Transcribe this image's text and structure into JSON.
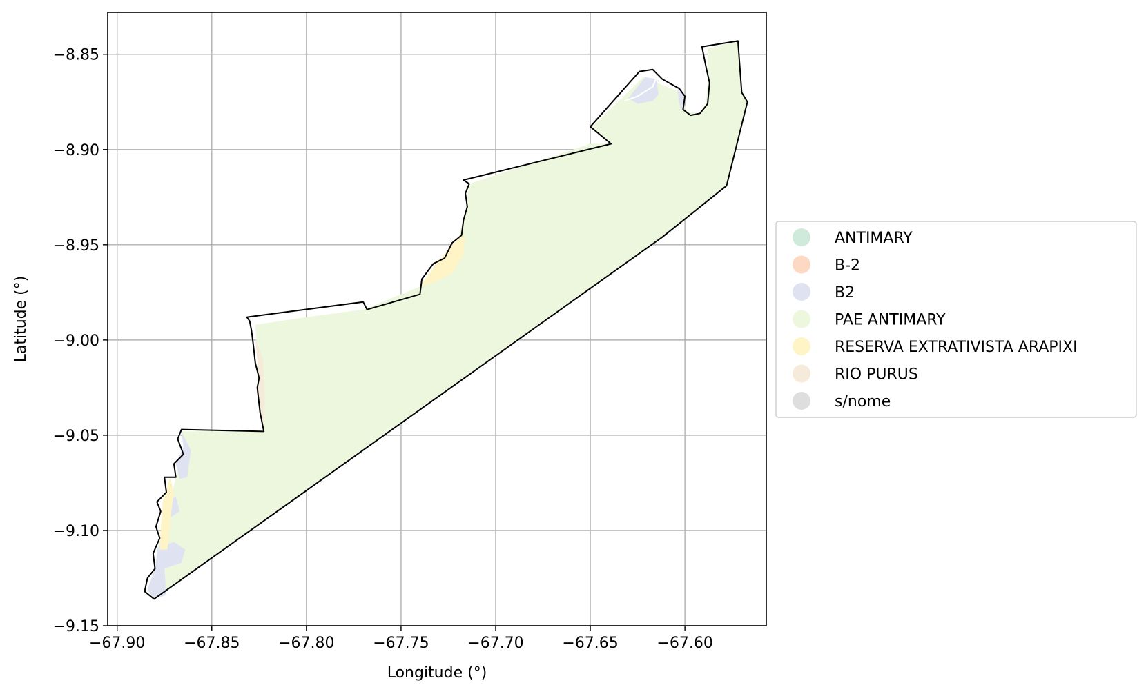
{
  "chart_data": {
    "type": "map",
    "xlabel": "Longitude (°)",
    "ylabel": "Latitude (°)",
    "xlim": [
      -67.905,
      -67.557
    ],
    "ylim": [
      -9.15,
      -8.828
    ],
    "grid": true,
    "x_ticks": [
      {
        "value": -67.9,
        "label": "−67.90"
      },
      {
        "value": -67.85,
        "label": "−67.85"
      },
      {
        "value": -67.8,
        "label": "−67.80"
      },
      {
        "value": -67.75,
        "label": "−67.75"
      },
      {
        "value": -67.7,
        "label": "−67.70"
      },
      {
        "value": -67.65,
        "label": "−67.65"
      },
      {
        "value": -67.6,
        "label": "−67.60"
      }
    ],
    "y_ticks": [
      {
        "value": -8.85,
        "label": "−8.85"
      },
      {
        "value": -8.9,
        "label": "−8.90"
      },
      {
        "value": -8.95,
        "label": "−8.95"
      },
      {
        "value": -9.0,
        "label": "−9.00"
      },
      {
        "value": -9.05,
        "label": "−9.05"
      },
      {
        "value": -9.1,
        "label": "−9.10"
      },
      {
        "value": -9.15,
        "label": "−9.15"
      }
    ],
    "legend": {
      "placement": "right",
      "entries": [
        {
          "label": "ANTIMARY",
          "color": "#cfeadb"
        },
        {
          "label": "B-2",
          "color": "#fdd8c2"
        },
        {
          "label": "B2",
          "color": "#dfe3f1"
        },
        {
          "label": "PAE ANTIMARY",
          "color": "#ecf7dd"
        },
        {
          "label": "RESERVA EXTRATIVISTA ARAPIXI",
          "color": "#fef4c6"
        },
        {
          "label": "RIO PURUS",
          "color": "#f6eadb"
        },
        {
          "label": "s/nome",
          "color": "#dedede"
        }
      ]
    },
    "regions": [
      {
        "category": "PAE ANTIMARY",
        "color": "#ecf7dd",
        "coords": [
          [
            -67.8805,
            -9.136
          ],
          [
            -67.884,
            -9.131
          ],
          [
            -67.8805,
            -9.121
          ],
          [
            -67.8785,
            -9.112
          ],
          [
            -67.877,
            -9.102
          ],
          [
            -67.876,
            -9.092
          ],
          [
            -67.872,
            -9.085
          ],
          [
            -67.869,
            -9.072
          ],
          [
            -67.865,
            -9.062
          ],
          [
            -67.864,
            -9.054
          ],
          [
            -67.866,
            -9.048
          ],
          [
            -67.8225,
            -9.048
          ],
          [
            -67.825,
            -9.02
          ],
          [
            -67.827,
            -8.992
          ],
          [
            -67.8,
            -8.988
          ],
          [
            -67.77,
            -8.984
          ],
          [
            -67.755,
            -8.978
          ],
          [
            -67.74,
            -8.972
          ],
          [
            -67.73,
            -8.958
          ],
          [
            -67.72,
            -8.947
          ],
          [
            -67.716,
            -8.933
          ],
          [
            -67.714,
            -8.918
          ],
          [
            -67.65,
            -8.897
          ],
          [
            -67.639,
            -8.897
          ],
          [
            -67.649,
            -8.888
          ],
          [
            -67.635,
            -8.8745
          ],
          [
            -67.622,
            -8.862
          ],
          [
            -67.602,
            -8.87
          ],
          [
            -67.599,
            -8.88
          ],
          [
            -67.592,
            -8.881
          ],
          [
            -67.589,
            -8.876
          ],
          [
            -67.588,
            -8.865
          ],
          [
            -67.588,
            -8.847
          ],
          [
            -67.572,
            -8.843
          ],
          [
            -67.57,
            -8.87
          ],
          [
            -67.567,
            -8.875
          ],
          [
            -67.578,
            -8.919
          ],
          [
            -67.612,
            -8.946
          ],
          [
            -67.8805,
            -9.136
          ]
        ]
      },
      {
        "category": "B2",
        "color": "#dfe3f1",
        "coords": [
          [
            -67.63,
            -8.873
          ],
          [
            -67.621,
            -8.862
          ],
          [
            -67.615,
            -8.863
          ],
          [
            -67.614,
            -8.871
          ],
          [
            -67.617,
            -8.8745
          ],
          [
            -67.625,
            -8.876
          ]
        ]
      },
      {
        "category": "B2",
        "color": "#dfe3f1",
        "coords": [
          [
            -67.604,
            -8.869
          ],
          [
            -67.601,
            -8.87
          ],
          [
            -67.6,
            -8.88
          ],
          [
            -67.6025,
            -8.878
          ]
        ]
      },
      {
        "category": "B2",
        "color": "#dfe3f1",
        "coords": [
          [
            -67.866,
            -9.048
          ],
          [
            -67.861,
            -9.058
          ],
          [
            -67.863,
            -9.072
          ],
          [
            -67.867,
            -9.073
          ],
          [
            -67.869,
            -9.065
          ],
          [
            -67.865,
            -9.056
          ]
        ]
      },
      {
        "category": "B2",
        "color": "#dfe3f1",
        "coords": [
          [
            -67.869,
            -9.082
          ],
          [
            -67.867,
            -9.09
          ],
          [
            -67.8715,
            -9.093
          ],
          [
            -67.873,
            -9.085
          ]
        ]
      },
      {
        "category": "B2",
        "color": "#dfe3f1",
        "coords": [
          [
            -67.8805,
            -9.136
          ],
          [
            -67.874,
            -9.134
          ],
          [
            -67.875,
            -9.12
          ],
          [
            -67.866,
            -9.117
          ],
          [
            -67.864,
            -9.11
          ],
          [
            -67.87,
            -9.106
          ],
          [
            -67.8785,
            -9.109
          ],
          [
            -67.88,
            -9.12
          ],
          [
            -67.884,
            -9.131
          ]
        ]
      },
      {
        "category": "RESERVA EXTRATIVISTA ARAPIXI",
        "color": "#fef4c6",
        "coords": [
          [
            -67.74,
            -8.972
          ],
          [
            -67.73,
            -8.958
          ],
          [
            -67.72,
            -8.947
          ],
          [
            -67.716,
            -8.945
          ],
          [
            -67.717,
            -8.955
          ],
          [
            -67.723,
            -8.965
          ],
          [
            -67.733,
            -8.97
          ]
        ]
      },
      {
        "category": "RESERVA EXTRATIVISTA ARAPIXI",
        "color": "#fef4c6",
        "coords": [
          [
            -67.872,
            -9.072
          ],
          [
            -67.876,
            -9.085
          ],
          [
            -67.877,
            -9.1
          ],
          [
            -67.8775,
            -9.11
          ],
          [
            -67.8735,
            -9.11
          ],
          [
            -67.872,
            -9.095
          ],
          [
            -67.87,
            -9.08
          ]
        ]
      },
      {
        "category": "RIO PURUS",
        "color": "#f6eadb",
        "coords": [
          [
            -67.827,
            -8.999
          ],
          [
            -67.823,
            -9.01
          ],
          [
            -67.822,
            -9.03
          ],
          [
            -67.8225,
            -9.048
          ],
          [
            -67.8255,
            -9.03
          ],
          [
            -67.826,
            -9.01
          ]
        ]
      }
    ],
    "boundary": [
      [
        -67.8805,
        -9.136
      ],
      [
        -67.8855,
        -9.132
      ],
      [
        -67.884,
        -9.125
      ],
      [
        -67.88,
        -9.12
      ],
      [
        -67.881,
        -9.112
      ],
      [
        -67.8775,
        -9.104
      ],
      [
        -67.8795,
        -9.098
      ],
      [
        -67.877,
        -9.09
      ],
      [
        -67.879,
        -9.085
      ],
      [
        -67.874,
        -9.08
      ],
      [
        -67.875,
        -9.072
      ],
      [
        -67.869,
        -9.072
      ],
      [
        -67.87,
        -9.065
      ],
      [
        -67.865,
        -9.06
      ],
      [
        -67.868,
        -9.052
      ],
      [
        -67.866,
        -9.047
      ],
      [
        -67.8225,
        -9.048
      ],
      [
        -67.8245,
        -9.038
      ],
      [
        -67.826,
        -9.025
      ],
      [
        -67.825,
        -9.02
      ],
      [
        -67.827,
        -9.012
      ],
      [
        -67.828,
        -9.003
      ],
      [
        -67.829,
        -8.995
      ],
      [
        -67.83,
        -8.99
      ],
      [
        -67.8315,
        -8.988
      ],
      [
        -67.77,
        -8.98
      ],
      [
        -67.768,
        -8.984
      ],
      [
        -67.74,
        -8.976
      ],
      [
        -67.739,
        -8.968
      ],
      [
        -67.733,
        -8.96
      ],
      [
        -67.727,
        -8.957
      ],
      [
        -67.723,
        -8.949
      ],
      [
        -67.718,
        -8.945
      ],
      [
        -67.717,
        -8.937
      ],
      [
        -67.715,
        -8.93
      ],
      [
        -67.716,
        -8.923
      ],
      [
        -67.714,
        -8.918
      ],
      [
        -67.717,
        -8.916
      ],
      [
        -67.639,
        -8.897
      ],
      [
        -67.65,
        -8.888
      ],
      [
        -67.624,
        -8.859
      ],
      [
        -67.617,
        -8.858
      ],
      [
        -67.612,
        -8.863
      ],
      [
        -67.603,
        -8.868
      ],
      [
        -67.6,
        -8.872
      ],
      [
        -67.601,
        -8.879
      ],
      [
        -67.597,
        -8.882
      ],
      [
        -67.592,
        -8.881
      ],
      [
        -67.588,
        -8.876
      ],
      [
        -67.587,
        -8.865
      ],
      [
        -67.589,
        -8.856
      ],
      [
        -67.591,
        -8.846
      ],
      [
        -67.572,
        -8.843
      ],
      [
        -67.57,
        -8.87
      ],
      [
        -67.567,
        -8.875
      ],
      [
        -67.578,
        -8.919
      ],
      [
        -67.612,
        -8.946
      ],
      [
        -67.8805,
        -9.136
      ]
    ],
    "inner_lines": [
      [
        [
          -67.632,
          -8.8745
        ],
        [
          -67.625,
          -8.872
        ],
        [
          -67.617,
          -8.867
        ],
        [
          -67.615,
          -8.862
        ]
      ]
    ]
  }
}
